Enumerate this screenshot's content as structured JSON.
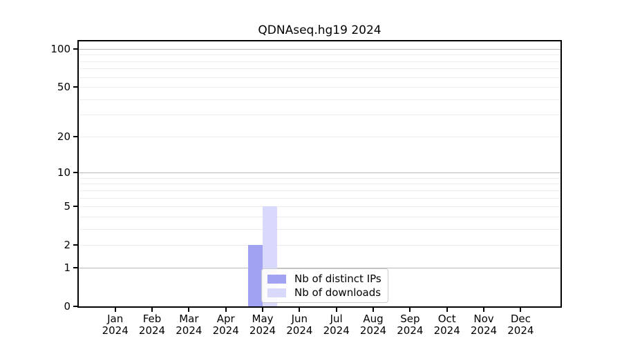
{
  "chart_data": {
    "type": "bar",
    "title": "QDNAseq.hg19 2024",
    "x_labels": [
      {
        "top": "Jan",
        "bottom": "2024"
      },
      {
        "top": "Feb",
        "bottom": "2024"
      },
      {
        "top": "Mar",
        "bottom": "2024"
      },
      {
        "top": "Apr",
        "bottom": "2024"
      },
      {
        "top": "May",
        "bottom": "2024"
      },
      {
        "top": "Jun",
        "bottom": "2024"
      },
      {
        "top": "Jul",
        "bottom": "2024"
      },
      {
        "top": "Aug",
        "bottom": "2024"
      },
      {
        "top": "Sep",
        "bottom": "2024"
      },
      {
        "top": "Oct",
        "bottom": "2024"
      },
      {
        "top": "Nov",
        "bottom": "2024"
      },
      {
        "top": "Dec",
        "bottom": "2024"
      }
    ],
    "series": [
      {
        "name": "Nb of distinct IPs",
        "color": "#a2a2f2",
        "values": [
          0,
          0,
          0,
          0,
          2,
          0,
          0,
          0,
          0,
          0,
          0,
          0
        ]
      },
      {
        "name": "Nb of downloads",
        "color": "#d9d9fb",
        "values": [
          0,
          0,
          0,
          0,
          5,
          0,
          0,
          0,
          0,
          0,
          0,
          0
        ]
      }
    ],
    "y_ticks": [
      0,
      1,
      2,
      5,
      10,
      20,
      50,
      100
    ],
    "y_scale": "log1p",
    "ylim": [
      0,
      115
    ],
    "grid": {
      "major_values": [
        1,
        10,
        100
      ],
      "minor_values": [
        2,
        3,
        4,
        5,
        6,
        7,
        8,
        9,
        20,
        30,
        40,
        50,
        60,
        70,
        80,
        90
      ],
      "major_color": "#b8b8b8",
      "minor_color": "#ececec"
    },
    "legend_position": "inside-bottom-center",
    "spine_color": "#000000",
    "background_color": "#ffffff"
  }
}
